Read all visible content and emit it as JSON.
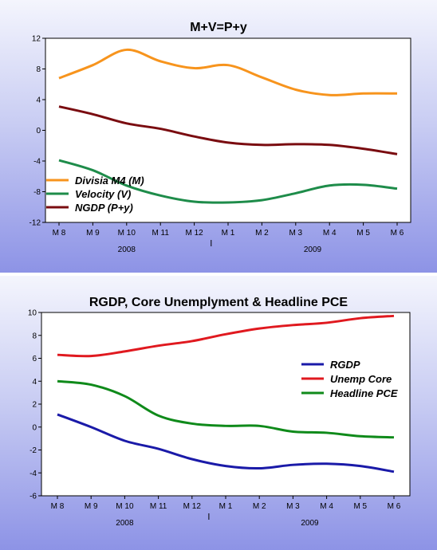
{
  "chart_data": [
    {
      "type": "line",
      "title": "M+V=P+y",
      "categories": [
        "M 8",
        "M 9",
        "M 10",
        "M 11",
        "M 12",
        "M 1",
        "M 2",
        "M 3",
        "M 4",
        "M 5",
        "M 6"
      ],
      "year_labels": [
        "2008",
        "2009"
      ],
      "ylim": [
        -12,
        12
      ],
      "yticks": [
        -12,
        -8,
        -4,
        0,
        4,
        8,
        12
      ],
      "legend_position": "bottom-left",
      "series": [
        {
          "name": "Divisia M4 (M)",
          "color": "#f7941d",
          "values": [
            6.8,
            8.5,
            10.5,
            9.0,
            8.1,
            8.5,
            6.9,
            5.3,
            4.6,
            4.8,
            4.8
          ]
        },
        {
          "name": "Velocity (V)",
          "color": "#1e8c4a",
          "values": [
            -3.9,
            -5.2,
            -7.2,
            -8.5,
            -9.3,
            -9.4,
            -9.1,
            -8.2,
            -7.2,
            -7.1,
            -7.6
          ]
        },
        {
          "name": "NGDP (P+y)",
          "color": "#7a0c10",
          "values": [
            3.1,
            2.1,
            0.9,
            0.2,
            -0.8,
            -1.6,
            -1.9,
            -1.8,
            -1.9,
            -2.4,
            -3.1
          ]
        }
      ]
    },
    {
      "type": "line",
      "title": "RGDP, Core Unemplyment & Headline PCE",
      "categories": [
        "M 8",
        "M 9",
        "M 10",
        "M 11",
        "M 12",
        "M 1",
        "M 2",
        "M 3",
        "M 4",
        "M 5",
        "M 6"
      ],
      "year_labels": [
        "2008",
        "2009"
      ],
      "ylim": [
        -6,
        10
      ],
      "yticks": [
        -6,
        -4,
        -2,
        0,
        2,
        4,
        6,
        8,
        10
      ],
      "legend_position": "right",
      "series": [
        {
          "name": "RGDP",
          "color": "#1a1aa8",
          "values": [
            1.1,
            0.0,
            -1.2,
            -1.9,
            -2.8,
            -3.4,
            -3.6,
            -3.3,
            -3.2,
            -3.4,
            -3.9
          ]
        },
        {
          "name": "Unemp Core",
          "color": "#e0191f",
          "values": [
            6.3,
            6.2,
            6.6,
            7.1,
            7.5,
            8.1,
            8.6,
            8.9,
            9.1,
            9.5,
            9.7
          ]
        },
        {
          "name": "Headline PCE",
          "color": "#0f8a1a",
          "values": [
            4.0,
            3.7,
            2.7,
            1.0,
            0.3,
            0.1,
            0.1,
            -0.4,
            -0.5,
            -0.8,
            -0.9
          ]
        }
      ]
    }
  ]
}
